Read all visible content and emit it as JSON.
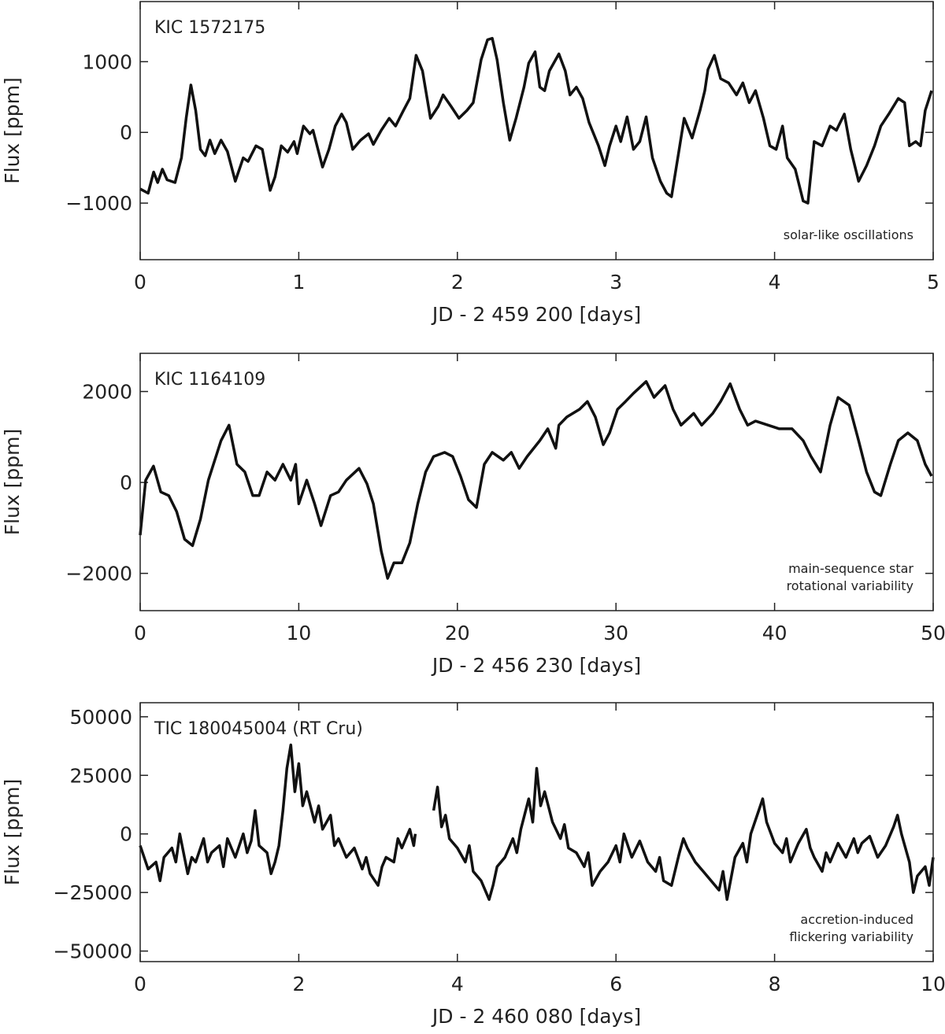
{
  "chart_data": [
    {
      "type": "line",
      "title": "KIC 1572175",
      "annotation": [
        "solar-like oscillations"
      ],
      "x_label": "JD - 2 459 200 [days]",
      "y_label": "Flux [ppm]",
      "xlim": [
        0,
        5
      ],
      "xticks": [
        0,
        1,
        2,
        3,
        4,
        5
      ],
      "ylim": [
        -1800,
        1850
      ],
      "yticks": [
        {
          "value": -1000,
          "label": "−1000"
        },
        0,
        1000
      ],
      "color": "#111111",
      "x": [
        0,
        0.05,
        0.085,
        0.11,
        0.14,
        0.17,
        0.22,
        0.26,
        0.29,
        0.32,
        0.35,
        0.38,
        0.41,
        0.44,
        0.47,
        0.51,
        0.55,
        0.6,
        0.65,
        0.68,
        0.73,
        0.77,
        0.82,
        0.85,
        0.89,
        0.93,
        0.97,
        0.99,
        1.03,
        1.07,
        1.09,
        1.15,
        1.19,
        1.23,
        1.27,
        1.3,
        1.34,
        1.39,
        1.44,
        1.47,
        1.52,
        1.57,
        1.61,
        1.66,
        1.7,
        1.74,
        1.78,
        1.83,
        1.88,
        1.91,
        1.96,
        2.01,
        2.06,
        2.1,
        2.15,
        2.19,
        2.22,
        2.25,
        2.29,
        2.33,
        2.37,
        2.42,
        2.45,
        2.49,
        2.52,
        2.55,
        2.58,
        2.64,
        2.68,
        2.71,
        2.75,
        2.79,
        2.83,
        2.89,
        2.93,
        2.96,
        3,
        3.03,
        3.07,
        3.11,
        3.15,
        3.19,
        3.23,
        3.28,
        3.32,
        3.35,
        3.39,
        3.43,
        3.48,
        3.53,
        3.56,
        3.58,
        3.62,
        3.66,
        3.71,
        3.76,
        3.8,
        3.84,
        3.88,
        3.93,
        3.97,
        4.01,
        4.05,
        4.08,
        4.13,
        4.18,
        4.21,
        4.25,
        4.3,
        4.35,
        4.39,
        4.44,
        4.48,
        4.53,
        4.58,
        4.63,
        4.67,
        4.72,
        4.78,
        4.82,
        4.85,
        4.89,
        4.92,
        4.95,
        4.99
      ],
      "values": [
        -800,
        -860,
        -560,
        -710,
        -520,
        -670,
        -710,
        -360,
        200,
        670,
        310,
        -240,
        -330,
        -110,
        -300,
        -110,
        -270,
        -690,
        -360,
        -410,
        -190,
        -240,
        -820,
        -630,
        -190,
        -280,
        -130,
        -300,
        90,
        -20,
        30,
        -490,
        -240,
        90,
        260,
        140,
        -240,
        -110,
        -20,
        -170,
        30,
        200,
        90,
        310,
        480,
        1090,
        870,
        200,
        370,
        530,
        370,
        200,
        310,
        420,
        1030,
        1310,
        1330,
        1030,
        420,
        -110,
        200,
        640,
        980,
        1140,
        640,
        590,
        870,
        1110,
        870,
        530,
        640,
        480,
        140,
        -190,
        -470,
        -190,
        90,
        -130,
        220,
        -240,
        -130,
        220,
        -360,
        -690,
        -860,
        -910,
        -360,
        200,
        -80,
        310,
        590,
        890,
        1090,
        760,
        700,
        530,
        700,
        420,
        590,
        200,
        -190,
        -240,
        90,
        -360,
        -520,
        -970,
        -1000,
        -130,
        -190,
        90,
        30,
        260,
        -240,
        -690,
        -470,
        -190,
        90,
        260,
        480,
        420,
        -190,
        -130,
        -190,
        310,
        590
      ]
    },
    {
      "type": "line",
      "title": "KIC 1164109",
      "annotation": [
        "main-sequence star",
        "rotational variability"
      ],
      "x_label": "JD - 2 456 230 [days]",
      "y_label": "Flux [ppm]",
      "xlim": [
        0,
        50
      ],
      "xticks": [
        0,
        10,
        20,
        30,
        40,
        50
      ],
      "ylim": [
        -2820,
        2840
      ],
      "yticks": [
        {
          "value": -2000,
          "label": "−2000"
        },
        0,
        2000
      ],
      "color": "#111111",
      "x": [
        0,
        0.35,
        0.84,
        1.3,
        1.8,
        2.3,
        2.8,
        3.3,
        3.8,
        4.3,
        5.1,
        5.6,
        6.1,
        6.6,
        7.1,
        7.5,
        8,
        8.5,
        9,
        9.5,
        9.8,
        10,
        10.5,
        11,
        11.4,
        12,
        12.5,
        13,
        13.8,
        14.3,
        14.7,
        15.2,
        15.6,
        16,
        16.5,
        17,
        17.5,
        18,
        18.5,
        19.2,
        19.7,
        20.2,
        20.7,
        21.2,
        21.7,
        22.2,
        22.9,
        23.4,
        23.9,
        24.4,
        25.2,
        25.7,
        26.2,
        26.4,
        26.9,
        27.7,
        28.2,
        28.7,
        29.2,
        29.6,
        30.1,
        30.6,
        31.1,
        31.9,
        32.4,
        33.1,
        33.6,
        34.1,
        34.9,
        35.4,
        36.1,
        36.6,
        37.2,
        37.8,
        38.3,
        38.8,
        39.6,
        40.3,
        41.1,
        41.8,
        42.3,
        42.9,
        43.5,
        44,
        44.7,
        45.3,
        45.8,
        46.3,
        46.7,
        47.3,
        47.8,
        48.4,
        49,
        49.5,
        49.9
      ],
      "values": [
        -1160,
        50,
        360,
        -210,
        -290,
        -640,
        -1250,
        -1390,
        -810,
        50,
        920,
        1260,
        400,
        230,
        -290,
        -290,
        230,
        50,
        400,
        50,
        400,
        -470,
        50,
        -470,
        -950,
        -290,
        -210,
        50,
        310,
        -30,
        -470,
        -1510,
        -2110,
        -1770,
        -1770,
        -1330,
        -470,
        230,
        570,
        660,
        570,
        140,
        -380,
        -550,
        400,
        660,
        490,
        660,
        310,
        570,
        920,
        1180,
        750,
        1260,
        1440,
        1610,
        1780,
        1440,
        830,
        1090,
        1610,
        1780,
        1960,
        2220,
        1870,
        2130,
        1610,
        1260,
        1520,
        1260,
        1520,
        1780,
        2170,
        1610,
        1260,
        1350,
        1260,
        1180,
        1180,
        920,
        570,
        230,
        1260,
        1870,
        1700,
        920,
        230,
        -210,
        -290,
        400,
        920,
        1090,
        920,
        400,
        140
      ]
    },
    {
      "type": "line",
      "title": "TIC 180045004 (RT Cru)",
      "annotation": [
        "accretion-induced",
        "flickering variability"
      ],
      "x_label": "JD - 2 460 080 [days]",
      "y_label": "Flux [ppm]",
      "xlim": [
        0,
        10
      ],
      "xticks": [
        0,
        2,
        4,
        6,
        8,
        10
      ],
      "ylim": [
        -54500,
        56000
      ],
      "yticks": [
        {
          "value": -50000,
          "label": "−50000"
        },
        {
          "value": -25000,
          "label": "−25000"
        },
        0,
        25000,
        50000
      ],
      "color": "#111111",
      "x": [
        0,
        0.1,
        0.2,
        0.25,
        0.3,
        0.4,
        0.45,
        0.5,
        0.6,
        0.65,
        0.7,
        0.8,
        0.85,
        0.9,
        1,
        1.05,
        1.1,
        1.2,
        1.3,
        1.35,
        1.4,
        1.45,
        1.5,
        1.6,
        1.65,
        1.7,
        1.75,
        1.8,
        1.85,
        1.9,
        1.95,
        2,
        2.05,
        2.1,
        2.2,
        2.25,
        2.3,
        2.4,
        2.45,
        2.5,
        2.6,
        2.7,
        2.8,
        2.85,
        2.9,
        3,
        3.05,
        3.1,
        3.2,
        3.25,
        3.3,
        3.4,
        3.45,
        3.47,
        3.6,
        3.7,
        3.75,
        3.8,
        3.85,
        3.9,
        4,
        4.1,
        4.15,
        4.2,
        4.3,
        4.4,
        4.45,
        4.5,
        4.6,
        4.7,
        4.75,
        4.8,
        4.9,
        4.95,
        5,
        5.05,
        5.1,
        5.2,
        5.3,
        5.35,
        5.4,
        5.5,
        5.6,
        5.65,
        5.7,
        5.8,
        5.9,
        6,
        6.05,
        6.1,
        6.2,
        6.3,
        6.4,
        6.5,
        6.55,
        6.6,
        6.7,
        6.8,
        6.85,
        6.9,
        7,
        7.1,
        7.2,
        7.3,
        7.35,
        7.4,
        7.5,
        7.6,
        7.65,
        7.7,
        7.8,
        7.85,
        7.9,
        8,
        8.1,
        8.15,
        8.2,
        8.3,
        8.4,
        8.45,
        8.5,
        8.6,
        8.65,
        8.7,
        8.8,
        8.9,
        9,
        9.05,
        9.1,
        9.2,
        9.3,
        9.4,
        9.5,
        9.55,
        9.6,
        9.7,
        9.75,
        9.8,
        9.9,
        9.95,
        10
      ],
      "values": [
        -5000,
        -15000,
        -12000,
        -20000,
        -10000,
        -6000,
        -12000,
        0,
        -17000,
        -10000,
        -12000,
        -2000,
        -12000,
        -8000,
        -5000,
        -14000,
        -2000,
        -10000,
        0,
        -8000,
        -3000,
        10000,
        -5000,
        -8000,
        -17000,
        -12000,
        -5000,
        10000,
        28000,
        38000,
        18000,
        30000,
        12000,
        18000,
        5000,
        12000,
        2000,
        8000,
        -5000,
        -2000,
        -10000,
        -6000,
        -15000,
        -10000,
        -17000,
        -22000,
        -14000,
        -10000,
        -12000,
        -2000,
        -6000,
        2000,
        -5000,
        0,
        null,
        10000,
        20000,
        3000,
        8000,
        -2000,
        -6000,
        -12000,
        -5000,
        -16000,
        -20000,
        -28000,
        -22000,
        -14000,
        -10000,
        -2000,
        -8000,
        2000,
        15000,
        5000,
        28000,
        12000,
        18000,
        5000,
        -2000,
        4000,
        -6000,
        -8000,
        -14000,
        -8000,
        -22000,
        -16000,
        -12000,
        -5000,
        -12000,
        0,
        -10000,
        -3000,
        -12000,
        -16000,
        -10000,
        -20000,
        -22000,
        -8000,
        -2000,
        -6000,
        -12000,
        -16000,
        -20000,
        -24000,
        -16000,
        -28000,
        -10000,
        -4000,
        -12000,
        0,
        10000,
        15000,
        5000,
        -4000,
        -8000,
        -2000,
        -12000,
        -4000,
        2000,
        -6000,
        -10000,
        -16000,
        -8000,
        -12000,
        -4000,
        -10000,
        -2000,
        -8000,
        -4000,
        -1000,
        -10000,
        -5000,
        3000,
        8000,
        0,
        -12000,
        -25000,
        -18000,
        -14000,
        -22000,
        -10000
      ]
    }
  ]
}
